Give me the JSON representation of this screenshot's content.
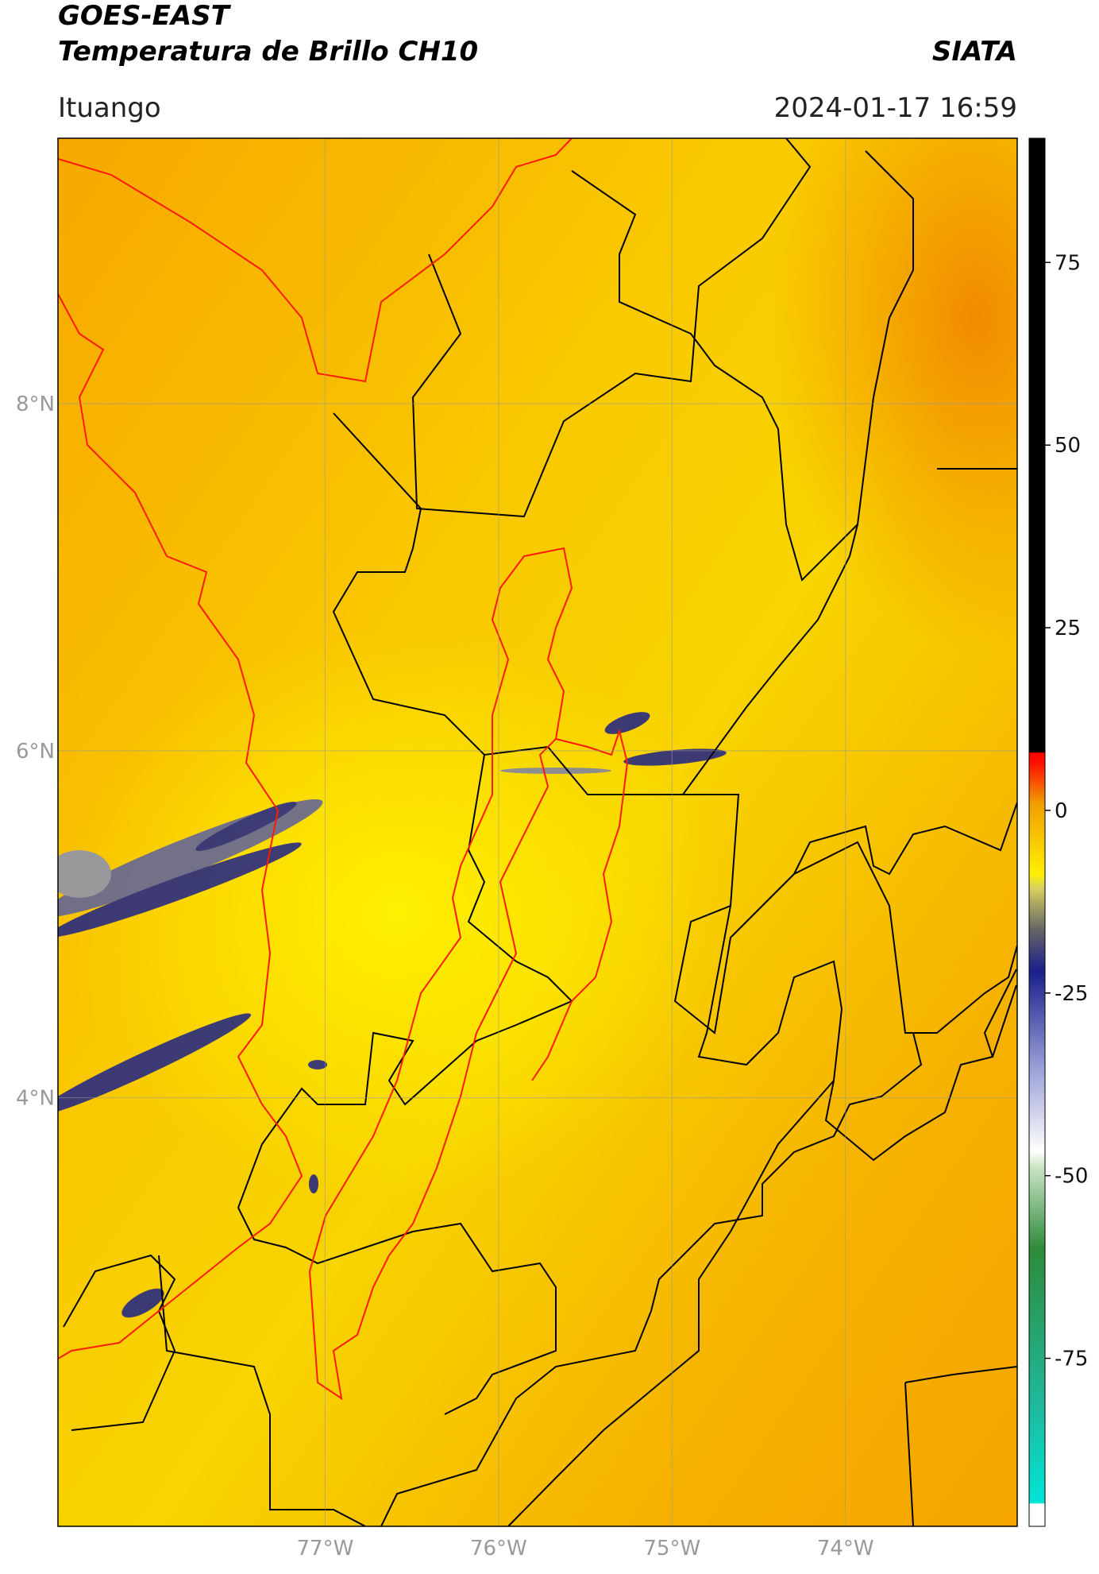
{
  "header": {
    "title_line1": "GOES-EAST",
    "title_line2": "Temperatura de Brillo CH10",
    "org": "SIATA",
    "location": "Ituango",
    "datetime": "2024-01-17 16:59"
  },
  "map": {
    "xlim": [
      -78.54,
      -73.01
    ],
    "ylim": [
      1.53,
      9.53
    ],
    "xticks": [
      {
        "value": -77,
        "label": "77°W"
      },
      {
        "value": -76,
        "label": "76°W"
      },
      {
        "value": -75,
        "label": "75°W"
      },
      {
        "value": -74,
        "label": "74°W"
      }
    ],
    "yticks": [
      {
        "value": 8,
        "label": "8°N"
      },
      {
        "value": 6,
        "label": "6°N"
      },
      {
        "value": 4,
        "label": "4°N"
      }
    ]
  },
  "colorbar": {
    "lim": [
      -98,
      92
    ],
    "ticks": [
      75,
      50,
      25,
      0,
      -25,
      -50,
      -75
    ]
  }
}
